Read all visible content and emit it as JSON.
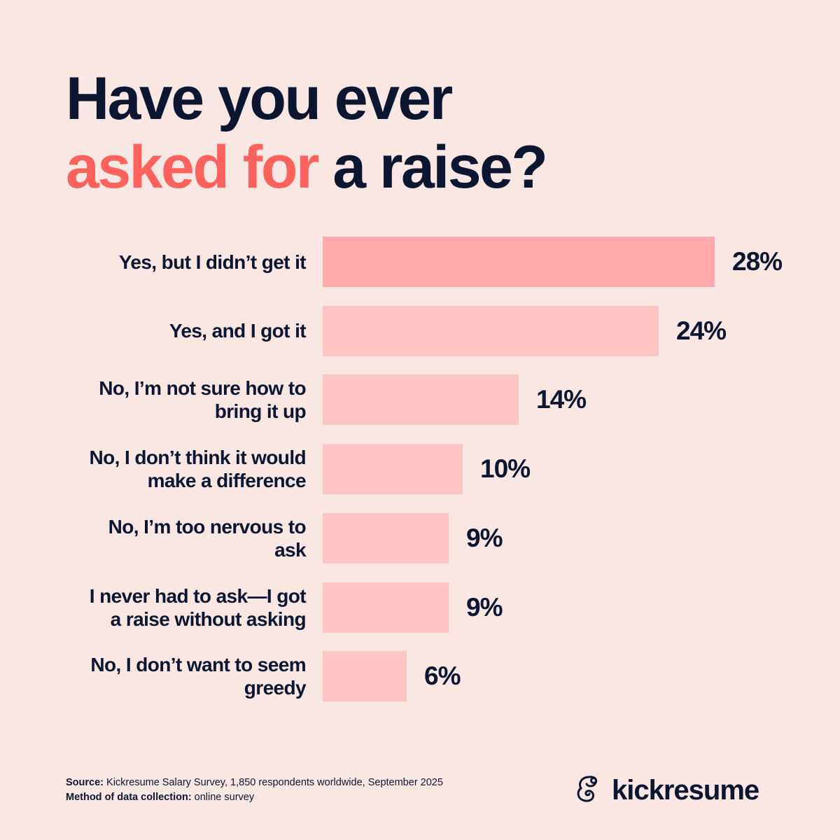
{
  "title": {
    "line1": "Have you ever",
    "line2_accent": "asked for",
    "line2_rest": " a raise?"
  },
  "colors": {
    "background": "#f9e7e4",
    "text": "#0c1631",
    "accent": "#fe625c",
    "bar_highlight": "#ffaaab",
    "bar": "#ffc5c3"
  },
  "chart_data": {
    "type": "bar",
    "orientation": "horizontal",
    "title": "Have you ever asked for a raise?",
    "categories": [
      "Yes, but I didn’t get it",
      "Yes, and I got it",
      "No, I’m not sure how to bring it up",
      "No, I don’t think it would make a difference",
      "No, I’m too nervous to ask",
      "I never had to ask—I got a raise without asking",
      "No, I don’t want to seem greedy"
    ],
    "values": [
      28,
      24,
      14,
      10,
      9,
      9,
      6
    ],
    "value_labels": [
      "28%",
      "24%",
      "14%",
      "10%",
      "9%",
      "9%",
      "6%"
    ],
    "unit": "%",
    "xlabel": "",
    "ylabel": "",
    "xlim": [
      0,
      28
    ],
    "grid": false,
    "legend": null,
    "highlighted_index": 0
  },
  "rows": [
    {
      "label_line1": "Yes, but I didn’t get it",
      "label_line2": "",
      "value": 28,
      "value_label": "28%"
    },
    {
      "label_line1": "Yes, and I got it",
      "label_line2": "",
      "value": 24,
      "value_label": "24%"
    },
    {
      "label_line1": "No, I’m not sure how to",
      "label_line2": "bring it up",
      "value": 14,
      "value_label": "14%"
    },
    {
      "label_line1": "No, I don’t think it would",
      "label_line2": "make a difference",
      "value": 10,
      "value_label": "10%"
    },
    {
      "label_line1": "No, I’m too nervous to",
      "label_line2": "ask",
      "value": 9,
      "value_label": "9%"
    },
    {
      "label_line1": "I never had to ask—I got",
      "label_line2": "a raise without asking",
      "value": 9,
      "value_label": "9%"
    },
    {
      "label_line1": "No, I don’t want to seem",
      "label_line2": "greedy",
      "value": 6,
      "value_label": "6%"
    }
  ],
  "footer": {
    "source_label": "Source:",
    "source_text": " Kickresume Salary Survey, 1,850 respondents worldwide, September 2025",
    "method_label": "Method of data collection:",
    "method_text": " online survey"
  },
  "brand": {
    "logo_icon": "chameleon-logo-icon",
    "name": "kickresume"
  }
}
